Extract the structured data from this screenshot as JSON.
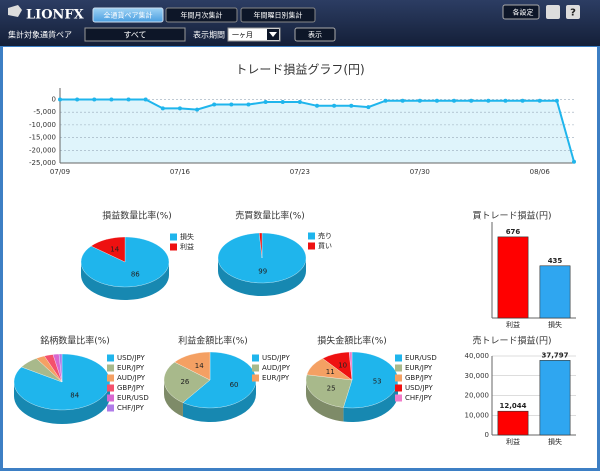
{
  "header": {
    "logo": "LIONFX",
    "tabs": [
      "全通貨ペア集計",
      "年間月次集計",
      "年間曜日別集計"
    ],
    "settings": "各設定",
    "help": "?",
    "pair_label": "集計対象通貨ペア",
    "pair_value": "すべて",
    "period_label": "表示期間",
    "period_value": "一ヶ月",
    "submit": "表示"
  },
  "chart_data": [
    {
      "type": "line",
      "title": "トレード損益グラフ(円)",
      "color": "#1fb5ec",
      "fill": "#dff4fb",
      "grid": true,
      "categories": [
        "07/09",
        null,
        null,
        null,
        null,
        null,
        null,
        "07/16",
        null,
        null,
        null,
        null,
        null,
        null,
        "07/23",
        null,
        null,
        null,
        null,
        null,
        null,
        "07/30",
        null,
        null,
        null,
        null,
        null,
        null,
        "08/06",
        null,
        null
      ],
      "values": [
        0,
        0,
        0,
        0,
        0,
        0,
        -3500,
        -3500,
        -4000,
        -2000,
        -2000,
        -2000,
        -1000,
        -1000,
        -1000,
        -2500,
        -2500,
        -2500,
        -3000,
        -500,
        -500,
        -500,
        -500,
        -500,
        -500,
        -500,
        -500,
        -500,
        -500,
        -500,
        -24500
      ],
      "ylim": [
        -25000,
        4500
      ],
      "yticks": [
        0,
        {
          "value": -5000,
          "label": "-5,000"
        },
        {
          "value": -10000,
          "label": "-10,000"
        },
        {
          "value": -15000,
          "label": "-15,000"
        },
        {
          "value": -20000,
          "label": "-20,000"
        },
        {
          "value": -25000,
          "label": "-25,000"
        }
      ]
    },
    {
      "type": "pie",
      "title": "損益数量比率(%)",
      "categories": [
        "損失",
        "利益"
      ],
      "values": [
        86,
        14
      ],
      "colors": [
        "#1fb5ec",
        "#ee1111"
      ]
    },
    {
      "type": "pie",
      "title": "売買数量比率(%)",
      "categories": [
        "売り",
        "買い"
      ],
      "values": [
        99,
        1
      ],
      "value_labels": [
        "99",
        null
      ],
      "colors": [
        "#1fb5ec",
        "#ee1111"
      ]
    },
    {
      "type": "pie",
      "title": "銘柄数量比率(%)",
      "categories": [
        "USD/JPY",
        "EUR/JPY",
        "AUD/JPY",
        "GBP/JPY",
        "EUR/USD",
        "CHF/JPY"
      ],
      "values": [
        84,
        7,
        3,
        3,
        2,
        1
      ],
      "value_labels": [
        "84",
        null,
        null,
        null,
        null,
        null
      ],
      "colors": [
        "#1fb5ec",
        "#a8b98b",
        "#f4a063",
        "#f4516c",
        "#d868d0",
        "#b07ce8"
      ]
    },
    {
      "type": "pie",
      "title": "利益金額比率(%)",
      "categories": [
        "USD/JPY",
        "AUD/JPY",
        "EUR/JPY"
      ],
      "values": [
        60,
        26,
        14
      ],
      "colors": [
        "#1fb5ec",
        "#a8b98b",
        "#f4a063"
      ]
    },
    {
      "type": "pie",
      "title": "損失金額比率(%)",
      "categories": [
        "EUR/USD",
        "EUR/JPY",
        "GBP/JPY",
        "USD/JPY",
        "CHF/JPY"
      ],
      "values": [
        53,
        25,
        11,
        10,
        1
      ],
      "value_labels": [
        "53",
        "25",
        "11",
        "10",
        null
      ],
      "colors": [
        "#1fb5ec",
        "#a8b98b",
        "#f4a063",
        "#ee1111",
        "#f07cc8"
      ]
    },
    {
      "type": "bar",
      "title": "買トレード損益(円)",
      "categories": [
        "利益",
        "損失"
      ],
      "values": [
        676,
        435
      ],
      "colors": [
        "#ff0000",
        "#2fa6f0"
      ],
      "ylim": [
        0,
        800
      ]
    },
    {
      "type": "bar",
      "title": "売トレード損益(円)",
      "categories": [
        "利益",
        "損失"
      ],
      "values": [
        12044,
        37797
      ],
      "value_labels": [
        "12,044",
        "37,797"
      ],
      "colors": [
        "#ff0000",
        "#2fa6f0"
      ],
      "ylim": [
        0,
        40000
      ],
      "grid": true,
      "yticks": [
        0,
        {
          "value": 10000,
          "label": "10,000"
        },
        {
          "value": 20000,
          "label": "20,000"
        },
        {
          "value": 30000,
          "label": "30,000"
        },
        {
          "value": 40000,
          "label": "40,000"
        }
      ]
    }
  ]
}
